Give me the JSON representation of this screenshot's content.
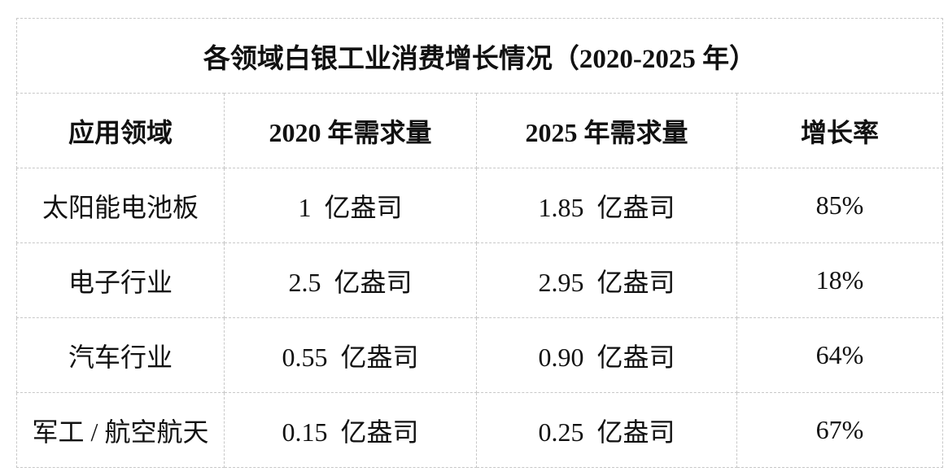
{
  "title": "各领域白银工业消费增长情况（2020-2025 年）",
  "table": {
    "header": [
      "应用领域",
      "2020 年需求量",
      "2025 年需求量",
      "增长率"
    ],
    "rows": [
      [
        "太阳能电池板",
        "1  亿盎司",
        "1.85  亿盎司",
        "85%"
      ],
      [
        "电子行业",
        "2.5  亿盎司",
        "2.95  亿盎司",
        "18%"
      ],
      [
        "汽车行业",
        "0.55  亿盎司",
        "0.90  亿盎司",
        "64%"
      ],
      [
        "军工 / 航空航天",
        "0.15  亿盎司",
        "0.25  亿盎司",
        "67%"
      ]
    ]
  }
}
